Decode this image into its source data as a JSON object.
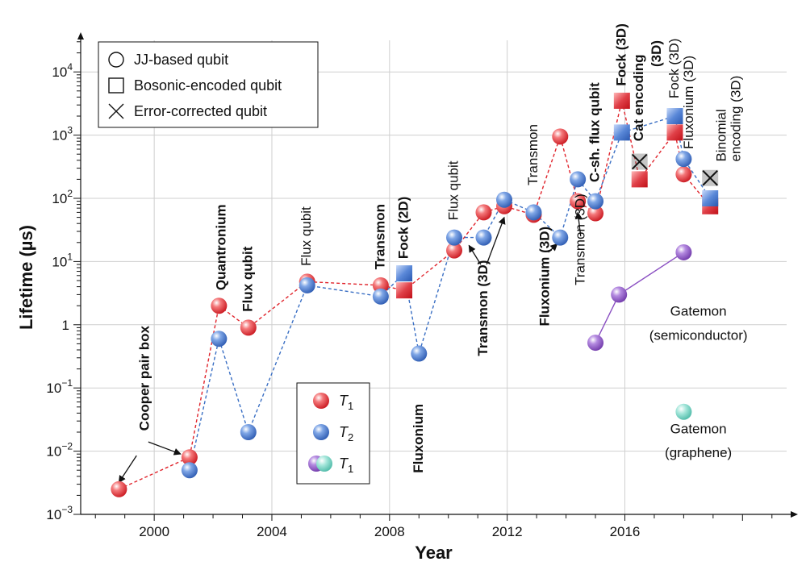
{
  "chart_data": {
    "type": "scatter",
    "x_axis": {
      "label": "Year",
      "range": [
        1997.5,
        2021.5
      ],
      "ticks": [
        2000,
        2004,
        2008,
        2012,
        2016
      ]
    },
    "y_axis": {
      "label": "Lifetime (µs)",
      "scale": "log",
      "range_exponent": [
        -3,
        4.5
      ],
      "ticks": [
        {
          "exp": -3,
          "text": "10",
          "sup": "−3"
        },
        {
          "exp": -2,
          "text": "10",
          "sup": "−2"
        },
        {
          "exp": -1,
          "text": "10",
          "sup": "−1"
        },
        {
          "exp": 0,
          "text": "1",
          "sup": ""
        },
        {
          "exp": 1,
          "text": "10",
          "sup": "1"
        },
        {
          "exp": 2,
          "text": "10",
          "sup": "2"
        },
        {
          "exp": 3,
          "text": "10",
          "sup": "3"
        },
        {
          "exp": 4,
          "text": "10",
          "sup": "4"
        }
      ]
    },
    "grid": true,
    "colors": {
      "T1": "#e0242c",
      "T2": "#3a6fc4",
      "purple": "#8a4fc2",
      "teal": "#6fd0c0"
    },
    "marker_legend": {
      "position": "top-left",
      "items": [
        {
          "marker": "circle",
          "label": "JJ-based qubit"
        },
        {
          "marker": "square",
          "label": "Bosonic-encoded qubit"
        },
        {
          "marker": "cross",
          "label": "Error-corrected qubit"
        }
      ]
    },
    "color_legend": {
      "position": "bottom-center",
      "items": [
        {
          "colors": [
            "T1"
          ],
          "label": "T",
          "sub": "1"
        },
        {
          "colors": [
            "T2"
          ],
          "label": "T",
          "sub": "2"
        },
        {
          "colors": [
            "purple",
            "teal"
          ],
          "label": "T",
          "sub": "1"
        }
      ]
    },
    "series": [
      {
        "name": "T1",
        "color": "T1",
        "points": [
          {
            "x": 1998.8,
            "y": 0.0025,
            "m": "circle"
          },
          {
            "x": 2001.2,
            "y": 0.008,
            "m": "circle"
          },
          {
            "x": 2002.2,
            "y": 2,
            "m": "circle"
          },
          {
            "x": 2003.2,
            "y": 0.9,
            "m": "circle"
          },
          {
            "x": 2005.2,
            "y": 4.8,
            "m": "circle"
          },
          {
            "x": 2007.7,
            "y": 4.2,
            "m": "circle"
          },
          {
            "x": 2008.5,
            "y": 3.5,
            "m": "square"
          },
          {
            "x": 2010.2,
            "y": 15,
            "m": "circle"
          },
          {
            "x": 2011.2,
            "y": 60,
            "m": "circle"
          },
          {
            "x": 2011.9,
            "y": 75,
            "m": "circle"
          },
          {
            "x": 2012.9,
            "y": 55,
            "m": "circle"
          },
          {
            "x": 2013.8,
            "y": 950,
            "m": "circle"
          },
          {
            "x": 2014.4,
            "y": 90,
            "m": "circle"
          },
          {
            "x": 2015.0,
            "y": 58,
            "m": "circle"
          },
          {
            "x": 2015.9,
            "y": 3500,
            "m": "square"
          },
          {
            "x": 2016.5,
            "y": 200,
            "m": "square"
          },
          {
            "x": 2017.7,
            "y": 1100,
            "m": "square"
          },
          {
            "x": 2018.0,
            "y": 240,
            "m": "circle"
          },
          {
            "x": 2018.9,
            "y": 75,
            "m": "square"
          }
        ]
      },
      {
        "name": "T2",
        "color": "T2",
        "points": [
          {
            "x": 2001.2,
            "y": 0.005,
            "m": "circle"
          },
          {
            "x": 2002.2,
            "y": 0.6,
            "m": "circle"
          },
          {
            "x": 2003.2,
            "y": 0.02,
            "m": "circle"
          },
          {
            "x": 2005.2,
            "y": 4.2,
            "m": "circle"
          },
          {
            "x": 2007.7,
            "y": 2.8,
            "m": "circle"
          },
          {
            "x": 2008.5,
            "y": 6.5,
            "m": "square"
          },
          {
            "x": 2009.0,
            "y": 0.35,
            "m": "circle"
          },
          {
            "x": 2010.2,
            "y": 24,
            "m": "circle"
          },
          {
            "x": 2011.2,
            "y": 24,
            "m": "circle"
          },
          {
            "x": 2011.9,
            "y": 95,
            "m": "circle"
          },
          {
            "x": 2012.9,
            "y": 60,
            "m": "circle"
          },
          {
            "x": 2013.8,
            "y": 24,
            "m": "circle"
          },
          {
            "x": 2014.4,
            "y": 200,
            "m": "circle"
          },
          {
            "x": 2015.0,
            "y": 90,
            "m": "circle"
          },
          {
            "x": 2015.9,
            "y": 1100,
            "m": "square"
          },
          {
            "x": 2017.7,
            "y": 2000,
            "m": "square"
          },
          {
            "x": 2018.0,
            "y": 420,
            "m": "circle"
          },
          {
            "x": 2018.9,
            "y": 100,
            "m": "square"
          }
        ]
      },
      {
        "name": "",
        "color": "purple",
        "points": [
          {
            "x": 2015.0,
            "y": 0.52,
            "m": "circle"
          },
          {
            "x": 2015.8,
            "y": 3,
            "m": "circle"
          },
          {
            "x": 2018.0,
            "y": 14,
            "m": "circle"
          }
        ]
      },
      {
        "name": "",
        "color": "teal",
        "points": [
          {
            "x": 2018.0,
            "y": 0.042,
            "m": "circle"
          }
        ]
      }
    ],
    "crosses": [
      {
        "x": 2016.5,
        "y": 380
      },
      {
        "x": 2018.9,
        "y": 210
      }
    ],
    "annotations": [
      {
        "text": "Cooper pair box",
        "x": 1999.7,
        "y": 0.021,
        "rot": -90,
        "bold": true
      },
      {
        "text": "Quantronium",
        "x": 2002.3,
        "y": 3.5,
        "rot": -90,
        "bold": true
      },
      {
        "text": "Flux qubit",
        "x": 2003.2,
        "y": 1.6,
        "rot": -90,
        "bold": true
      },
      {
        "text": "Flux qubit",
        "x": 2005.2,
        "y": 8.5,
        "rot": -90,
        "bold": false
      },
      {
        "text": "Transmon",
        "x": 2007.7,
        "y": 7.5,
        "rot": -90,
        "bold": true
      },
      {
        "text": "Fock (2D)",
        "x": 2008.5,
        "y": 11,
        "rot": -90,
        "bold": true
      },
      {
        "text": "Fluxonium",
        "x": 2009.0,
        "y": 0.0045,
        "rot": -90,
        "bold": true,
        "anchor": "start"
      },
      {
        "text": "Flux qubit",
        "x": 2010.2,
        "y": 45,
        "rot": -90,
        "bold": false
      },
      {
        "text": "Transmon (3D)",
        "x": 2011.2,
        "y": 0.32,
        "rot": -90,
        "bold": true
      },
      {
        "text": "Transmon",
        "x": 2012.9,
        "y": 160,
        "rot": -90,
        "bold": false
      },
      {
        "text": "Fluxonium (3D)",
        "x": 2013.3,
        "y": 0.95,
        "rot": -90,
        "bold": true
      },
      {
        "text": "Transmon (3D)",
        "x": 2014.5,
        "y": 4.2,
        "rot": -90,
        "bold": false
      },
      {
        "text": "C-sh. flux qubit",
        "x": 2015.0,
        "y": 180,
        "rot": -90,
        "bold": true
      },
      {
        "text": "Fock (3D)",
        "x": 2015.9,
        "y": 6000,
        "rot": -90,
        "bold": true
      },
      {
        "text": "Cat encoding",
        "x": 2016.5,
        "y": 800,
        "rot": -90,
        "bold": true
      },
      {
        "text": "(3D)",
        "x": 2017.1,
        "y": 12000,
        "rot": -90,
        "bold": true
      },
      {
        "text": "Fock (3D)",
        "x": 2017.7,
        "y": 3800,
        "rot": -90,
        "bold": false
      },
      {
        "text": "Fluxonium (3D)",
        "x": 2018.2,
        "y": 600,
        "rot": -90,
        "bold": false
      },
      {
        "text": "Binomial",
        "x": 2019.3,
        "y": 380,
        "rot": -90,
        "bold": false
      },
      {
        "text": "encoding (3D)",
        "x": 2019.8,
        "y": 380,
        "rot": -90,
        "bold": false
      },
      {
        "text": "Gatemon",
        "x": 2018.5,
        "y": 1.4,
        "rot": 0,
        "bold": false
      },
      {
        "text": "(semiconductor)",
        "x": 2018.5,
        "y": 0.58,
        "rot": 0,
        "bold": false
      },
      {
        "text": "Gatemon",
        "x": 2018.5,
        "y": 0.019,
        "rot": 0,
        "bold": false
      },
      {
        "text": "(graphene)",
        "x": 2018.5,
        "y": 0.008,
        "rot": 0,
        "bold": false
      }
    ],
    "arrows": [
      {
        "from": [
          1999.4,
          0.0085
        ],
        "to": [
          1998.8,
          0.0032
        ]
      },
      {
        "from": [
          1999.8,
          0.014
        ],
        "to": [
          2000.9,
          0.009
        ]
      },
      {
        "from": [
          2011.3,
          9
        ],
        "to": [
          2011.9,
          50
        ]
      },
      {
        "from": [
          2011.1,
          9
        ],
        "to": [
          2010.7,
          18
        ]
      },
      {
        "from": [
          2013.4,
          14
        ],
        "to": [
          2013.7,
          19
        ]
      },
      {
        "from": [
          2014.5,
          25
        ],
        "to": [
          2014.4,
          60
        ]
      }
    ]
  }
}
